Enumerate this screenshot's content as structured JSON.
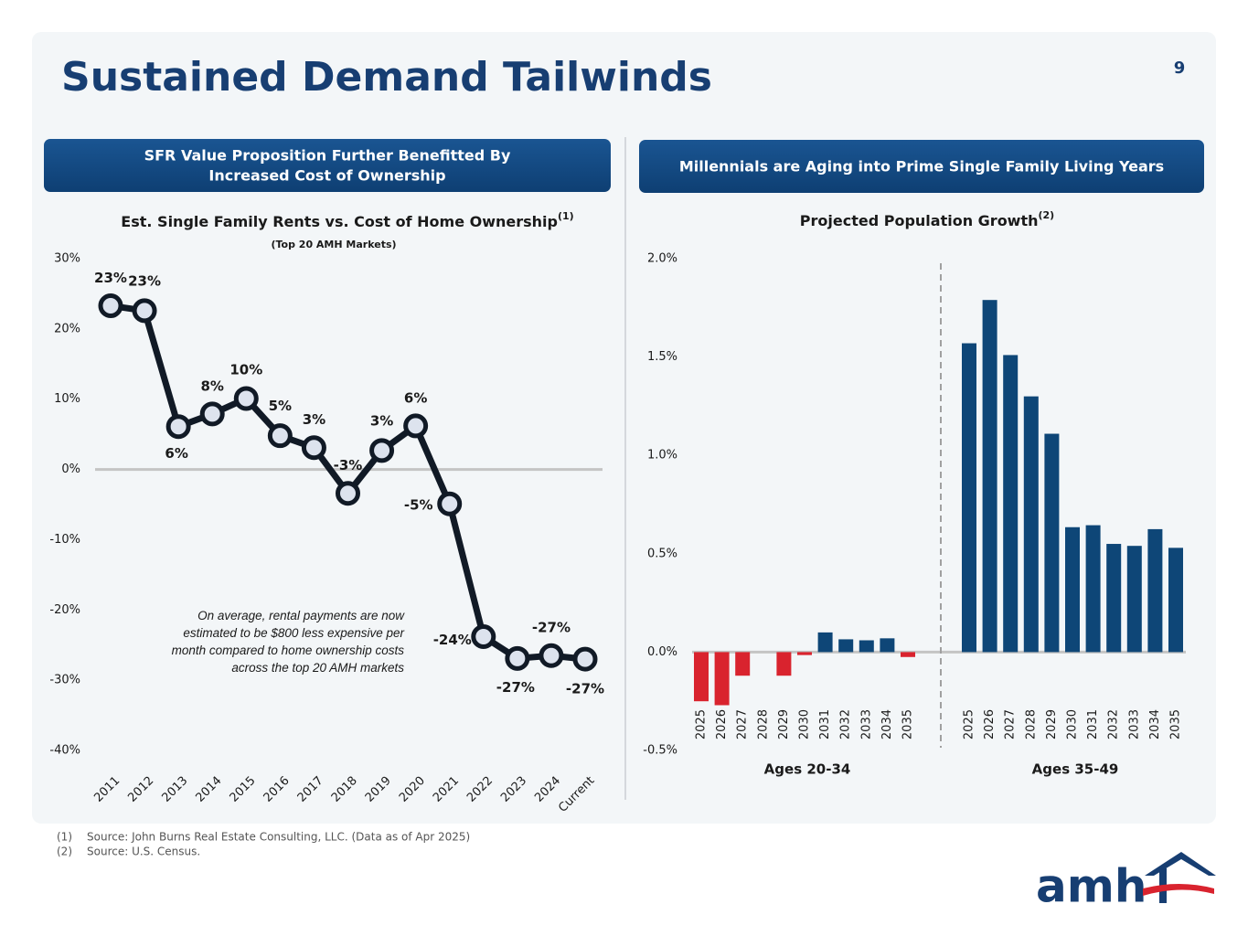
{
  "title": "Sustained Demand Tailwinds",
  "page_number": "9",
  "left_header": [
    "SFR Value Proposition Further Benefitted By",
    "Increased Cost of Ownership"
  ],
  "right_header": "Millennials are Aging into Prime Single Family Living Years",
  "footnotes": [
    {
      "marker": "(1)",
      "text": "Source: John Burns Real Estate Consulting, LLC. (Data as of Apr 2025)"
    },
    {
      "marker": "(2)",
      "text": "Source: U.S. Census."
    }
  ],
  "logo": "amh",
  "chart_data": [
    {
      "type": "line",
      "title": "Est. Single Family Rents vs. Cost of Home Ownership",
      "title_note": "(1)",
      "subtitle": "(Top 20 AMH Markets)",
      "annotation": "On average, rental payments are now estimated to be $800 less expensive per month compared to home ownership costs across the top 20 AMH markets",
      "categories": [
        "2011",
        "2012",
        "2013",
        "2014",
        "2015",
        "2016",
        "2017",
        "2018",
        "2019",
        "2020",
        "2021",
        "2022",
        "2023",
        "2024",
        "Current"
      ],
      "values": [
        23.3,
        22.6,
        6.1,
        7.9,
        10.1,
        4.8,
        3.1,
        -3.4,
        2.7,
        6.2,
        -4.9,
        -23.8,
        -26.9,
        -26.5,
        -27.0
      ],
      "value_labels": [
        "23%",
        "23%",
        "6%",
        "8%",
        "10%",
        "5%",
        "3%",
        "-3%",
        "3%",
        "6%",
        "-5%",
        "-24%",
        "-27%",
        "-27%",
        "-27%"
      ],
      "color": "#111a26",
      "marker_fill": "#dde3ee",
      "ylim": [
        -40,
        30
      ],
      "yticks": [
        {
          "value": 30,
          "label": "30%"
        },
        {
          "value": 20,
          "label": "20%"
        },
        {
          "value": 10,
          "label": "10%"
        },
        {
          "value": 0,
          "label": "0%"
        },
        {
          "value": -10,
          "label": "-10%"
        },
        {
          "value": -20,
          "label": "-20%"
        },
        {
          "value": -30,
          "label": "-30%"
        },
        {
          "value": -40,
          "label": "-40%"
        }
      ]
    },
    {
      "type": "grouped_bar",
      "title": "Projected Population Growth",
      "title_note": "(2)",
      "categories": [
        "2025",
        "2026",
        "2027",
        "2028",
        "2029",
        "2030",
        "2031",
        "2032",
        "2033",
        "2034",
        "2035"
      ],
      "color": "#0e4677",
      "negative_color": "#d9232e",
      "series": [
        {
          "name": "Ages 20-34",
          "values": [
            -0.25,
            -0.27,
            -0.12,
            0,
            -0.12,
            -0.015,
            0.1,
            0.065,
            0.06,
            0.07,
            -0.025
          ]
        },
        {
          "name": "Ages 35-49",
          "values": [
            1.57,
            1.79,
            1.51,
            1.3,
            1.11,
            0.635,
            0.645,
            0.55,
            0.54,
            0.625,
            0.53
          ]
        }
      ],
      "ylim": [
        -0.5,
        2.0
      ],
      "yticks": [
        {
          "value": 2.0,
          "label": "2.0%"
        },
        {
          "value": 1.5,
          "label": "1.5%"
        },
        {
          "value": 1.0,
          "label": "1.0%"
        },
        {
          "value": 0.5,
          "label": "0.5%"
        },
        {
          "value": 0.0,
          "label": "0.0%"
        },
        {
          "value": -0.5,
          "label": "-0.5%"
        }
      ]
    }
  ]
}
